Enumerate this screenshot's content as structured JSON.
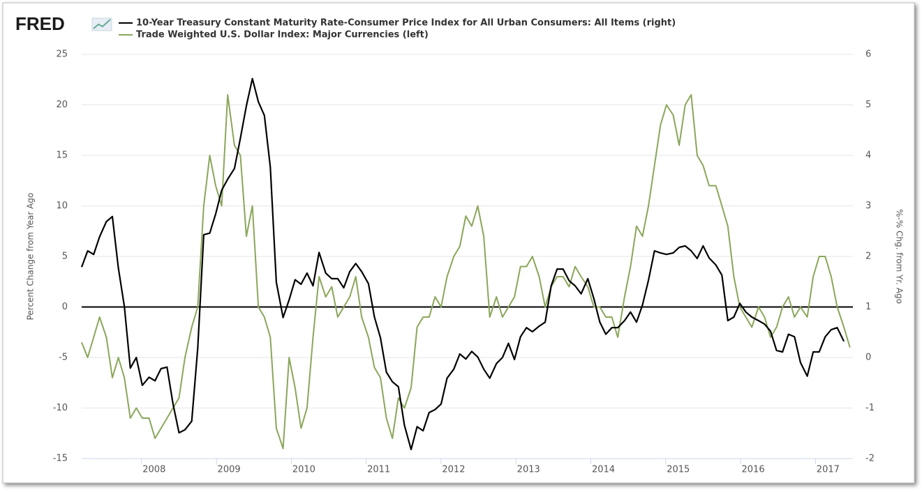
{
  "logo": "FRED",
  "chart_data": {
    "type": "line",
    "ylabel": "Percent Change from Year Ago",
    "y2label": "%-% Chg. from Yr. Ago",
    "xlim": [
      2007.2,
      2017.5
    ],
    "xticks": [
      2008,
      2009,
      2010,
      2011,
      2012,
      2013,
      2014,
      2015,
      2016,
      2017
    ],
    "ylim": [
      -15,
      25
    ],
    "yticks": [
      -15,
      -10,
      -5,
      0,
      5,
      10,
      15,
      20,
      25
    ],
    "y2lim": [
      -2,
      6
    ],
    "y2ticks": [
      -2,
      -1,
      0,
      1,
      2,
      3,
      4,
      5,
      6
    ],
    "grid": true,
    "x": [
      2007.2,
      2007.28,
      2007.36,
      2007.44,
      2007.53,
      2007.61,
      2007.69,
      2007.77,
      2007.85,
      2007.93,
      2008.01,
      2008.1,
      2008.18,
      2008.26,
      2008.34,
      2008.42,
      2008.5,
      2008.58,
      2008.67,
      2008.75,
      2008.83,
      2008.91,
      2008.99,
      2009.07,
      2009.15,
      2009.24,
      2009.32,
      2009.4,
      2009.48,
      2009.56,
      2009.64,
      2009.72,
      2009.8,
      2009.89,
      2009.97,
      2010.05,
      2010.13,
      2010.21,
      2010.29,
      2010.37,
      2010.46,
      2010.54,
      2010.62,
      2010.7,
      2010.78,
      2010.86,
      2010.94,
      2011.03,
      2011.11,
      2011.19,
      2011.27,
      2011.35,
      2011.43,
      2011.51,
      2011.6,
      2011.68,
      2011.76,
      2011.84,
      2011.92,
      2012.0,
      2012.08,
      2012.17,
      2012.25,
      2012.33,
      2012.41,
      2012.49,
      2012.57,
      2012.65,
      2012.74,
      2012.82,
      2012.9,
      2012.98,
      2013.06,
      2013.14,
      2013.22,
      2013.31,
      2013.39,
      2013.47,
      2013.55,
      2013.63,
      2013.71,
      2013.79,
      2013.87,
      2013.96,
      2014.04,
      2014.12,
      2014.2,
      2014.28,
      2014.36,
      2014.45,
      2014.53,
      2014.61,
      2014.69,
      2014.77,
      2014.85,
      2014.93,
      2015.01,
      2015.1,
      2015.18,
      2015.26,
      2015.34,
      2015.42,
      2015.5,
      2015.58,
      2015.67,
      2015.75,
      2015.83,
      2015.91,
      2015.99,
      2016.07,
      2016.15,
      2016.24,
      2016.32,
      2016.4,
      2016.48,
      2016.56,
      2016.64,
      2016.72,
      2016.8,
      2016.89,
      2016.97,
      2017.05,
      2017.13,
      2017.21,
      2017.29,
      2017.38,
      2017.46
    ],
    "series": [
      {
        "name": "10-Year Treasury Constant Maturity Rate-Consumer Price Index for All Urban Consumers: All Items (right)",
        "color": "#000000",
        "axis": "y2",
        "values": [
          1.79,
          2.11,
          2.04,
          2.39,
          2.69,
          2.79,
          1.77,
          1.01,
          -0.21,
          0.0,
          -0.55,
          -0.39,
          -0.46,
          -0.22,
          -0.19,
          -0.92,
          -1.49,
          -1.43,
          -1.26,
          0.18,
          2.43,
          2.46,
          2.84,
          3.31,
          3.53,
          3.74,
          4.34,
          4.98,
          5.52,
          5.06,
          4.79,
          3.77,
          1.49,
          0.79,
          1.14,
          1.54,
          1.45,
          1.67,
          1.42,
          2.08,
          1.67,
          1.56,
          1.56,
          1.38,
          1.7,
          1.86,
          1.7,
          1.46,
          0.8,
          0.39,
          -0.29,
          -0.48,
          -0.58,
          -1.34,
          -1.82,
          -1.37,
          -1.45,
          -1.09,
          -1.03,
          -0.92,
          -0.41,
          -0.23,
          0.07,
          -0.03,
          0.12,
          0.01,
          -0.23,
          -0.41,
          -0.12,
          0.0,
          0.28,
          -0.04,
          0.41,
          0.59,
          0.51,
          0.62,
          0.7,
          1.42,
          1.75,
          1.75,
          1.52,
          1.42,
          1.26,
          1.56,
          1.17,
          0.7,
          0.46,
          0.59,
          0.59,
          0.73,
          0.9,
          0.7,
          1.04,
          1.53,
          2.11,
          2.07,
          2.04,
          2.07,
          2.18,
          2.21,
          2.11,
          1.96,
          2.21,
          1.97,
          1.83,
          1.63,
          0.73,
          0.8,
          1.07,
          0.9,
          0.8,
          0.73,
          0.66,
          0.52,
          0.14,
          0.11,
          0.46,
          0.41,
          -0.1,
          -0.37,
          0.11,
          0.11,
          0.41,
          0.55,
          0.59,
          0.32,
          null
        ]
      },
      {
        "name": "Trade Weighted U.S. Dollar Index: Major Currencies (left)",
        "color": "#8aa65a",
        "values": [
          -3.5,
          -5,
          -3,
          -1,
          -3,
          -7,
          -5,
          -7,
          -11,
          -10,
          -11,
          -11,
          -13,
          -12,
          -11,
          -10,
          -9,
          -5,
          -2,
          0,
          10,
          15,
          12,
          10,
          21,
          16,
          15,
          7,
          10,
          0,
          -1,
          -3,
          -12,
          -14,
          -5,
          -8,
          -12,
          -10,
          -3,
          3,
          1,
          2,
          -1,
          0,
          1,
          3,
          -1,
          -3,
          -6,
          -7,
          -11,
          -13,
          -9,
          -10,
          -8,
          -2,
          -1,
          -1,
          1,
          0,
          3,
          5,
          6,
          9,
          8,
          10,
          7,
          -1,
          1,
          -1,
          0,
          1,
          4,
          4,
          5,
          3,
          0,
          2,
          3,
          3,
          2,
          4,
          3,
          2,
          0,
          0,
          -1,
          -1,
          -3,
          1,
          4,
          8,
          7,
          10,
          14,
          18,
          20,
          19,
          16,
          20,
          21,
          15,
          14,
          12,
          12,
          10,
          8,
          3,
          0,
          -1,
          -2,
          0,
          -1,
          -3,
          -2,
          0,
          1,
          -1,
          0,
          -1,
          3,
          5,
          5,
          3,
          0,
          -2,
          -4
        ]
      }
    ]
  }
}
